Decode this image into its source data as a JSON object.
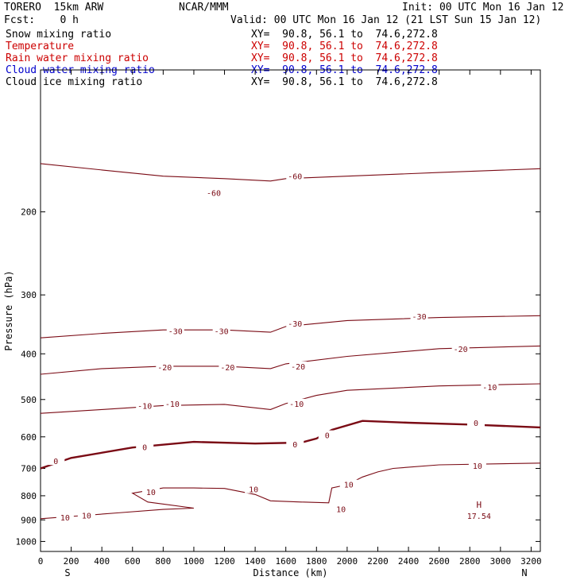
{
  "header": {
    "model": "TORERO  15km ARW",
    "center": "NCAR/MMM",
    "init": "Init: 00 UTC Mon 16 Jan 12",
    "fcst": "Fcst:    0 h",
    "valid": "Valid: 00 UTC Mon 16 Jan 12 (21 LST Sun 15 Jan 12)"
  },
  "legend": [
    {
      "label": "Snow mixing ratio",
      "xy": "XY=  90.8, 56.1 to  74.6,272.8",
      "color": "#000000"
    },
    {
      "label": "Temperature",
      "xy": "XY=  90.8, 56.1 to  74.6,272.8",
      "color": "#cc0000"
    },
    {
      "label": "Rain water mixing ratio",
      "xy": "XY=  90.8, 56.1 to  74.6,272.8",
      "color": "#cc0000"
    },
    {
      "label": "Cloud water mixing ratio",
      "xy": "XY=  90.8, 56.1 to  74.6,272.8",
      "color": "#0000cc"
    },
    {
      "label": "Cloud ice mixing ratio",
      "xy": "XY=  90.8, 56.1 to  74.6,272.8",
      "color": "#000000"
    }
  ],
  "colors": {
    "contour": "#7a0a14",
    "axis": "#000000"
  },
  "chart_data": {
    "type": "contour",
    "field": "Temperature",
    "xlabel": "Distance (km)",
    "ylabel": "Pressure (hPa)",
    "xlim": [
      0,
      3260
    ],
    "ylim": [
      1050,
      100
    ],
    "y_scale": "log",
    "x_ticks": [
      0,
      200,
      400,
      600,
      800,
      1000,
      1200,
      1400,
      1600,
      1800,
      2000,
      2200,
      2400,
      2600,
      2800,
      3000,
      3200
    ],
    "y_ticks": [
      200,
      300,
      400,
      500,
      600,
      700,
      800,
      900,
      1000
    ],
    "x_end_labels": {
      "left": "S",
      "right": "N"
    },
    "max_marker": {
      "label": "H",
      "value": "17.54",
      "x": 2860,
      "p": 868
    },
    "contours": [
      {
        "level": -60,
        "labels": [
          {
            "x": 1130,
            "p": 182,
            "text": "-60"
          },
          {
            "x": 1660,
            "p": 168,
            "text": "-60"
          }
        ],
        "points": [
          [
            0,
            158
          ],
          [
            400,
            163
          ],
          [
            800,
            168
          ],
          [
            1200,
            170
          ],
          [
            1500,
            172
          ],
          [
            1600,
            170
          ],
          [
            2000,
            168
          ],
          [
            2600,
            165
          ],
          [
            3260,
            162
          ]
        ]
      },
      {
        "level": -30,
        "labels": [
          {
            "x": 880,
            "p": 358,
            "text": "-30"
          },
          {
            "x": 1180,
            "p": 358,
            "text": "-30"
          },
          {
            "x": 1660,
            "p": 345,
            "text": "-30"
          },
          {
            "x": 2470,
            "p": 333,
            "text": "-30"
          }
        ],
        "points": [
          [
            0,
            370
          ],
          [
            400,
            362
          ],
          [
            800,
            356
          ],
          [
            1200,
            356
          ],
          [
            1500,
            360
          ],
          [
            1600,
            350
          ],
          [
            2000,
            340
          ],
          [
            2600,
            335
          ],
          [
            3260,
            332
          ]
        ]
      },
      {
        "level": -20,
        "labels": [
          {
            "x": 810,
            "p": 427,
            "text": "-20"
          },
          {
            "x": 1220,
            "p": 427,
            "text": "-20"
          },
          {
            "x": 1680,
            "p": 425,
            "text": "-20"
          },
          {
            "x": 2740,
            "p": 390,
            "text": "-20"
          }
        ],
        "points": [
          [
            0,
            442
          ],
          [
            400,
            430
          ],
          [
            800,
            425
          ],
          [
            1200,
            425
          ],
          [
            1500,
            430
          ],
          [
            1600,
            420
          ],
          [
            2000,
            405
          ],
          [
            2600,
            390
          ],
          [
            3260,
            385
          ]
        ]
      },
      {
        "level": -10,
        "labels": [
          {
            "x": 680,
            "p": 515,
            "text": "-10"
          },
          {
            "x": 860,
            "p": 510,
            "text": "-10"
          },
          {
            "x": 1670,
            "p": 510,
            "text": "-10"
          },
          {
            "x": 2930,
            "p": 470,
            "text": "-10"
          }
        ],
        "points": [
          [
            0,
            535
          ],
          [
            400,
            525
          ],
          [
            800,
            515
          ],
          [
            1200,
            512
          ],
          [
            1500,
            525
          ],
          [
            1600,
            510
          ],
          [
            1800,
            490
          ],
          [
            2000,
            478
          ],
          [
            2600,
            468
          ],
          [
            3260,
            463
          ]
        ]
      },
      {
        "level": 0,
        "bold": true,
        "labels": [
          {
            "x": 100,
            "p": 675,
            "text": "0"
          },
          {
            "x": 680,
            "p": 630,
            "text": "0"
          },
          {
            "x": 1660,
            "p": 622,
            "text": "0"
          },
          {
            "x": 1870,
            "p": 595,
            "text": "0"
          },
          {
            "x": 2840,
            "p": 560,
            "text": "0"
          }
        ],
        "points": [
          [
            0,
            700
          ],
          [
            200,
            665
          ],
          [
            600,
            632
          ],
          [
            1000,
            615
          ],
          [
            1400,
            620
          ],
          [
            1700,
            617
          ],
          [
            1800,
            605
          ],
          [
            1900,
            580
          ],
          [
            2100,
            555
          ],
          [
            2400,
            560
          ],
          [
            2800,
            565
          ],
          [
            3260,
            573
          ]
        ]
      },
      {
        "level": 10,
        "labels": [
          {
            "x": 720,
            "p": 785,
            "text": "10"
          },
          {
            "x": 1390,
            "p": 775,
            "text": "10"
          },
          {
            "x": 2010,
            "p": 757,
            "text": "10"
          },
          {
            "x": 2850,
            "p": 690,
            "text": "10"
          },
          {
            "x": 160,
            "p": 888,
            "text": "10"
          },
          {
            "x": 300,
            "p": 880,
            "text": "10"
          },
          {
            "x": 1960,
            "p": 853,
            "text": "10"
          }
        ],
        "points": [
          [
            0,
            895
          ],
          [
            300,
            880
          ],
          [
            500,
            870
          ],
          [
            800,
            855
          ],
          [
            1000,
            850
          ],
          [
            700,
            825
          ],
          [
            600,
            790
          ],
          [
            800,
            770
          ],
          [
            1000,
            770
          ],
          [
            1200,
            772
          ],
          [
            1400,
            795
          ],
          [
            1500,
            820
          ],
          [
            1700,
            825
          ],
          [
            1880,
            828
          ],
          [
            1900,
            770
          ],
          [
            2000,
            758
          ],
          [
            2100,
            730
          ],
          [
            2200,
            712
          ],
          [
            2300,
            700
          ],
          [
            2600,
            688
          ],
          [
            3260,
            682
          ]
        ]
      }
    ]
  }
}
